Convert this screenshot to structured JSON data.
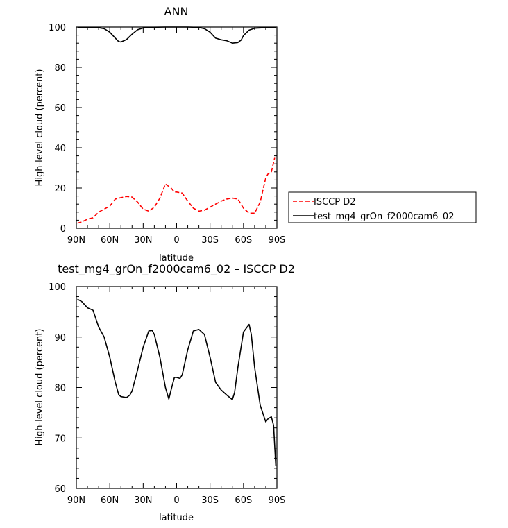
{
  "chart_data": [
    {
      "type": "line",
      "title": "ANN",
      "xlabel": "latitude",
      "ylabel": "High-level cloud (percent)",
      "xlim": [
        90,
        -90
      ],
      "ylim": [
        0,
        100
      ],
      "x_ticks": [
        90,
        60,
        30,
        0,
        -30,
        -60,
        -90
      ],
      "x_tick_labels": [
        "90N",
        "60N",
        "30N",
        "0",
        "30S",
        "60S",
        "90S"
      ],
      "y_ticks": [
        0,
        20,
        40,
        60,
        80,
        100
      ],
      "y_tick_labels": [
        "0",
        "20",
        "40",
        "60",
        "80",
        "100"
      ],
      "legend_position": "right",
      "series": [
        {
          "name": "ISCCP D2",
          "color": "#ff0000",
          "dash": "dashed",
          "x": [
            89,
            85,
            80,
            75,
            70,
            65,
            60,
            55,
            50,
            45,
            40,
            35,
            30,
            25,
            20,
            15,
            10,
            5,
            2,
            0,
            -5,
            -10,
            -15,
            -20,
            -25,
            -30,
            -35,
            -40,
            -45,
            -50,
            -55,
            -60,
            -65,
            -70,
            -75,
            -80,
            -82,
            -85,
            -88
          ],
          "y": [
            2.5,
            3.2,
            4.5,
            5.2,
            8,
            9.5,
            11,
            14.5,
            15.2,
            15.8,
            15.5,
            13,
            9.5,
            8.5,
            10.5,
            15,
            22,
            20,
            18,
            18,
            17.5,
            13.5,
            10,
            8.5,
            9,
            10.5,
            12,
            13.5,
            14.5,
            15,
            14.5,
            10,
            7.5,
            7.5,
            13,
            25,
            27,
            28,
            35
          ]
        },
        {
          "name": "test_mg4_grOn_f2000cam6_02",
          "color": "#000000",
          "dash": "solid",
          "x": [
            89,
            80,
            70,
            65,
            60,
            55,
            52,
            50,
            45,
            40,
            35,
            30,
            25,
            20,
            10,
            0,
            -10,
            -20,
            -25,
            -30,
            -35,
            -40,
            -45,
            -50,
            -55,
            -58,
            -60,
            -65,
            -70,
            -80,
            -89
          ],
          "y": [
            99.8,
            99.8,
            99.7,
            99.2,
            97.5,
            94.5,
            92.8,
            92.6,
            93.8,
            96.5,
            98.7,
            99.5,
            99.8,
            99.9,
            100,
            100,
            100,
            99.8,
            99.2,
            97.5,
            94.5,
            93.7,
            93.2,
            92,
            92.3,
            93.6,
            95.8,
            98.5,
            99.4,
            99.7,
            99.7
          ]
        }
      ]
    },
    {
      "type": "line",
      "title": "test_mg4_grOn_f2000cam6_02 – ISCCP D2",
      "xlabel": "latitude",
      "ylabel": "High-level cloud (percent)",
      "xlim": [
        90,
        -90
      ],
      "ylim": [
        60,
        100
      ],
      "x_ticks": [
        90,
        60,
        30,
        0,
        -30,
        -60,
        -90
      ],
      "x_tick_labels": [
        "90N",
        "60N",
        "30N",
        "0",
        "30S",
        "60S",
        "90S"
      ],
      "y_ticks": [
        60,
        70,
        80,
        90,
        100
      ],
      "y_tick_labels": [
        "60",
        "70",
        "80",
        "90",
        "100"
      ],
      "series": [
        {
          "color": "#000000",
          "dash": "solid",
          "x": [
            89,
            85,
            80,
            75,
            70,
            65,
            60,
            55,
            52,
            50,
            45,
            42,
            40,
            35,
            30,
            25,
            22,
            20,
            15,
            10,
            7,
            5,
            2,
            0,
            -3,
            -5,
            -10,
            -15,
            -20,
            -25,
            -30,
            -35,
            -40,
            -45,
            -50,
            -52,
            -55,
            -60,
            -65,
            -67,
            -70,
            -75,
            -80,
            -82,
            -85,
            -87,
            -89
          ],
          "y": [
            97.5,
            97,
            95.8,
            95.3,
            92,
            90,
            86,
            81,
            78.6,
            78.2,
            78,
            78.5,
            79.3,
            83.5,
            88,
            91.2,
            91.3,
            90.5,
            86,
            80,
            77.7,
            79.5,
            82,
            82,
            81.8,
            82.5,
            87.5,
            91.2,
            91.5,
            90.5,
            86,
            81,
            79.5,
            78.5,
            77.6,
            79,
            84,
            91,
            92.5,
            90.5,
            84,
            76.5,
            73.2,
            73.8,
            74.2,
            72.5,
            64.5
          ]
        }
      ]
    }
  ]
}
